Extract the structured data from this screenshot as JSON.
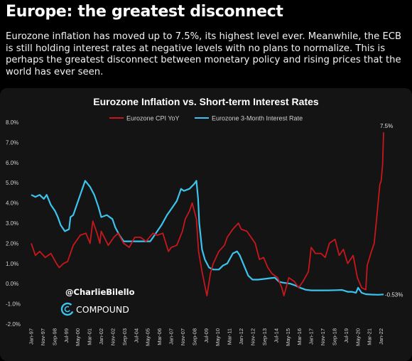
{
  "header": {
    "title": "Europe: the greatest disconnect",
    "description": "Eurozone inflation has moved up to 7.5%, its highest level ever. Meanwhile, the ECB is still holding interest rates at negative levels with no plans to normalize. This is perhaps the greatest disconnect between monetary policy and rising prices that the world has ever seen."
  },
  "watermark": {
    "handle": "@CharlieBilello",
    "brand": "COMPOUND"
  },
  "colors": {
    "cpi": "#c8171c",
    "rate": "#3cc3ee",
    "background": "#000000",
    "panel": "#141414"
  },
  "chart_data": {
    "type": "line",
    "title": "Eurozone Inflation vs. Short-term Interest Rates",
    "legend_position": "top",
    "grid": false,
    "ylim": [
      -2.0,
      8.0
    ],
    "y_ticks": [
      "8.0%",
      "7.0%",
      "6.0%",
      "5.0%",
      "4.0%",
      "3.0%",
      "2.0%",
      "1.0%",
      "0.0%",
      "-1.0%",
      "-2.0%"
    ],
    "y_tick_values": [
      8,
      7,
      6,
      5,
      4,
      3,
      2,
      1,
      0,
      -1,
      -2
    ],
    "x_ticks": [
      "Jan-97",
      "Nov-97",
      "Sep-98",
      "Jul-99",
      "May-00",
      "Mar-01",
      "Jan-02",
      "Nov-02",
      "Sep-03",
      "Jul-04",
      "May-05",
      "Mar-06",
      "Jan-07",
      "Nov-07",
      "Sep-08",
      "Jul-09",
      "May-10",
      "Mar-11",
      "Jan-12",
      "Nov-12",
      "Sep-13",
      "Jul-14",
      "May-15",
      "Mar-16",
      "Jan-17",
      "Nov-17",
      "Sep-18",
      "Jul-19",
      "May-20",
      "Mar-21",
      "Jan-22"
    ],
    "annotations": [
      {
        "text": "7.5%",
        "series": "Eurozone CPI YoY",
        "x": 2022.17,
        "y": 7.5
      },
      {
        "text": "-0.53%",
        "series": "Eurozone 3-Month Interest Rate",
        "x": 2022.17,
        "y": -0.53
      }
    ],
    "series": [
      {
        "name": "Eurozone CPI YoY",
        "color": "#c8171c",
        "points": [
          [
            1997.0,
            2.0
          ],
          [
            1997.3,
            1.4
          ],
          [
            1997.6,
            1.6
          ],
          [
            1998.0,
            1.3
          ],
          [
            1998.4,
            1.5
          ],
          [
            1998.8,
            1.0
          ],
          [
            1999.0,
            0.8
          ],
          [
            1999.3,
            1.0
          ],
          [
            1999.6,
            1.1
          ],
          [
            2000.0,
            1.9
          ],
          [
            2000.5,
            2.4
          ],
          [
            2000.9,
            2.5
          ],
          [
            2001.2,
            2.0
          ],
          [
            2001.4,
            3.1
          ],
          [
            2001.7,
            2.5
          ],
          [
            2001.9,
            2.0
          ],
          [
            2002.0,
            2.6
          ],
          [
            2002.5,
            1.9
          ],
          [
            2002.9,
            2.3
          ],
          [
            2003.2,
            2.5
          ],
          [
            2003.6,
            2.0
          ],
          [
            2004.0,
            1.8
          ],
          [
            2004.4,
            2.3
          ],
          [
            2004.8,
            2.3
          ],
          [
            2005.2,
            2.1
          ],
          [
            2005.7,
            2.5
          ],
          [
            2006.0,
            2.4
          ],
          [
            2006.4,
            2.5
          ],
          [
            2006.8,
            1.6
          ],
          [
            2007.0,
            1.8
          ],
          [
            2007.4,
            1.9
          ],
          [
            2007.8,
            2.6
          ],
          [
            2008.0,
            3.2
          ],
          [
            2008.3,
            3.6
          ],
          [
            2008.5,
            4.0
          ],
          [
            2008.8,
            3.2
          ],
          [
            2008.95,
            1.6
          ],
          [
            2009.2,
            0.6
          ],
          [
            2009.4,
            -0.1
          ],
          [
            2009.55,
            -0.6
          ],
          [
            2009.8,
            0.5
          ],
          [
            2010.0,
            1.0
          ],
          [
            2010.4,
            1.6
          ],
          [
            2010.8,
            1.9
          ],
          [
            2011.0,
            2.3
          ],
          [
            2011.4,
            2.7
          ],
          [
            2011.8,
            3.0
          ],
          [
            2012.0,
            2.7
          ],
          [
            2012.4,
            2.6
          ],
          [
            2012.8,
            2.2
          ],
          [
            2013.0,
            2.0
          ],
          [
            2013.3,
            1.2
          ],
          [
            2013.6,
            1.3
          ],
          [
            2013.9,
            0.8
          ],
          [
            2014.2,
            0.5
          ],
          [
            2014.6,
            0.3
          ],
          [
            2014.9,
            -0.2
          ],
          [
            2015.05,
            -0.6
          ],
          [
            2015.4,
            0.3
          ],
          [
            2015.8,
            0.1
          ],
          [
            2016.1,
            -0.2
          ],
          [
            2016.4,
            0.1
          ],
          [
            2016.8,
            0.6
          ],
          [
            2017.0,
            1.8
          ],
          [
            2017.3,
            1.5
          ],
          [
            2017.7,
            1.5
          ],
          [
            2018.0,
            1.3
          ],
          [
            2018.3,
            2.0
          ],
          [
            2018.7,
            2.2
          ],
          [
            2019.0,
            1.4
          ],
          [
            2019.3,
            1.7
          ],
          [
            2019.6,
            1.0
          ],
          [
            2019.9,
            1.3
          ],
          [
            2020.0,
            1.4
          ],
          [
            2020.3,
            0.3
          ],
          [
            2020.6,
            -0.2
          ],
          [
            2020.9,
            -0.3
          ],
          [
            2021.0,
            0.9
          ],
          [
            2021.3,
            1.6
          ],
          [
            2021.5,
            2.0
          ],
          [
            2021.7,
            3.4
          ],
          [
            2021.9,
            4.9
          ],
          [
            2022.0,
            5.1
          ],
          [
            2022.1,
            5.9
          ],
          [
            2022.17,
            7.5
          ]
        ]
      },
      {
        "name": "Eurozone 3-Month Interest Rate",
        "color": "#3cc3ee",
        "points": [
          [
            1997.0,
            4.4
          ],
          [
            1997.3,
            4.3
          ],
          [
            1997.6,
            4.4
          ],
          [
            1997.9,
            4.2
          ],
          [
            1998.1,
            4.4
          ],
          [
            1998.4,
            3.9
          ],
          [
            1998.7,
            3.6
          ],
          [
            1998.9,
            3.3
          ],
          [
            1999.1,
            2.9
          ],
          [
            1999.4,
            2.6
          ],
          [
            1999.7,
            2.7
          ],
          [
            1999.8,
            3.3
          ],
          [
            2000.0,
            3.4
          ],
          [
            2000.3,
            4.0
          ],
          [
            2000.6,
            4.6
          ],
          [
            2000.85,
            5.1
          ],
          [
            2001.2,
            4.8
          ],
          [
            2001.5,
            4.4
          ],
          [
            2001.8,
            3.8
          ],
          [
            2002.0,
            3.3
          ],
          [
            2002.4,
            3.4
          ],
          [
            2002.8,
            3.2
          ],
          [
            2003.0,
            2.8
          ],
          [
            2003.3,
            2.4
          ],
          [
            2003.6,
            2.1
          ],
          [
            2004.0,
            2.1
          ],
          [
            2004.5,
            2.1
          ],
          [
            2005.0,
            2.1
          ],
          [
            2005.5,
            2.1
          ],
          [
            2005.9,
            2.5
          ],
          [
            2006.3,
            2.9
          ],
          [
            2006.7,
            3.4
          ],
          [
            2007.0,
            3.7
          ],
          [
            2007.4,
            4.1
          ],
          [
            2007.7,
            4.7
          ],
          [
            2007.9,
            4.6
          ],
          [
            2008.3,
            4.7
          ],
          [
            2008.65,
            4.95
          ],
          [
            2008.8,
            5.1
          ],
          [
            2008.92,
            4.2
          ],
          [
            2009.0,
            3.0
          ],
          [
            2009.2,
            1.7
          ],
          [
            2009.4,
            1.2
          ],
          [
            2009.7,
            0.8
          ],
          [
            2010.0,
            0.7
          ],
          [
            2010.4,
            0.7
          ],
          [
            2010.7,
            0.9
          ],
          [
            2011.0,
            1.0
          ],
          [
            2011.4,
            1.5
          ],
          [
            2011.7,
            1.6
          ],
          [
            2011.9,
            1.4
          ],
          [
            2012.2,
            0.9
          ],
          [
            2012.5,
            0.4
          ],
          [
            2012.8,
            0.2
          ],
          [
            2013.2,
            0.2
          ],
          [
            2013.8,
            0.25
          ],
          [
            2014.4,
            0.3
          ],
          [
            2014.7,
            0.1
          ],
          [
            2015.0,
            0.05
          ],
          [
            2015.5,
            0.0
          ],
          [
            2015.9,
            -0.1
          ],
          [
            2016.2,
            -0.2
          ],
          [
            2016.6,
            -0.3
          ],
          [
            2017.0,
            -0.33
          ],
          [
            2017.6,
            -0.33
          ],
          [
            2018.2,
            -0.33
          ],
          [
            2018.8,
            -0.32
          ],
          [
            2019.2,
            -0.31
          ],
          [
            2019.6,
            -0.4
          ],
          [
            2019.9,
            -0.4
          ],
          [
            2020.2,
            -0.45
          ],
          [
            2020.35,
            -0.2
          ],
          [
            2020.6,
            -0.45
          ],
          [
            2020.9,
            -0.52
          ],
          [
            2021.3,
            -0.54
          ],
          [
            2021.8,
            -0.55
          ],
          [
            2022.17,
            -0.53
          ]
        ]
      }
    ]
  }
}
